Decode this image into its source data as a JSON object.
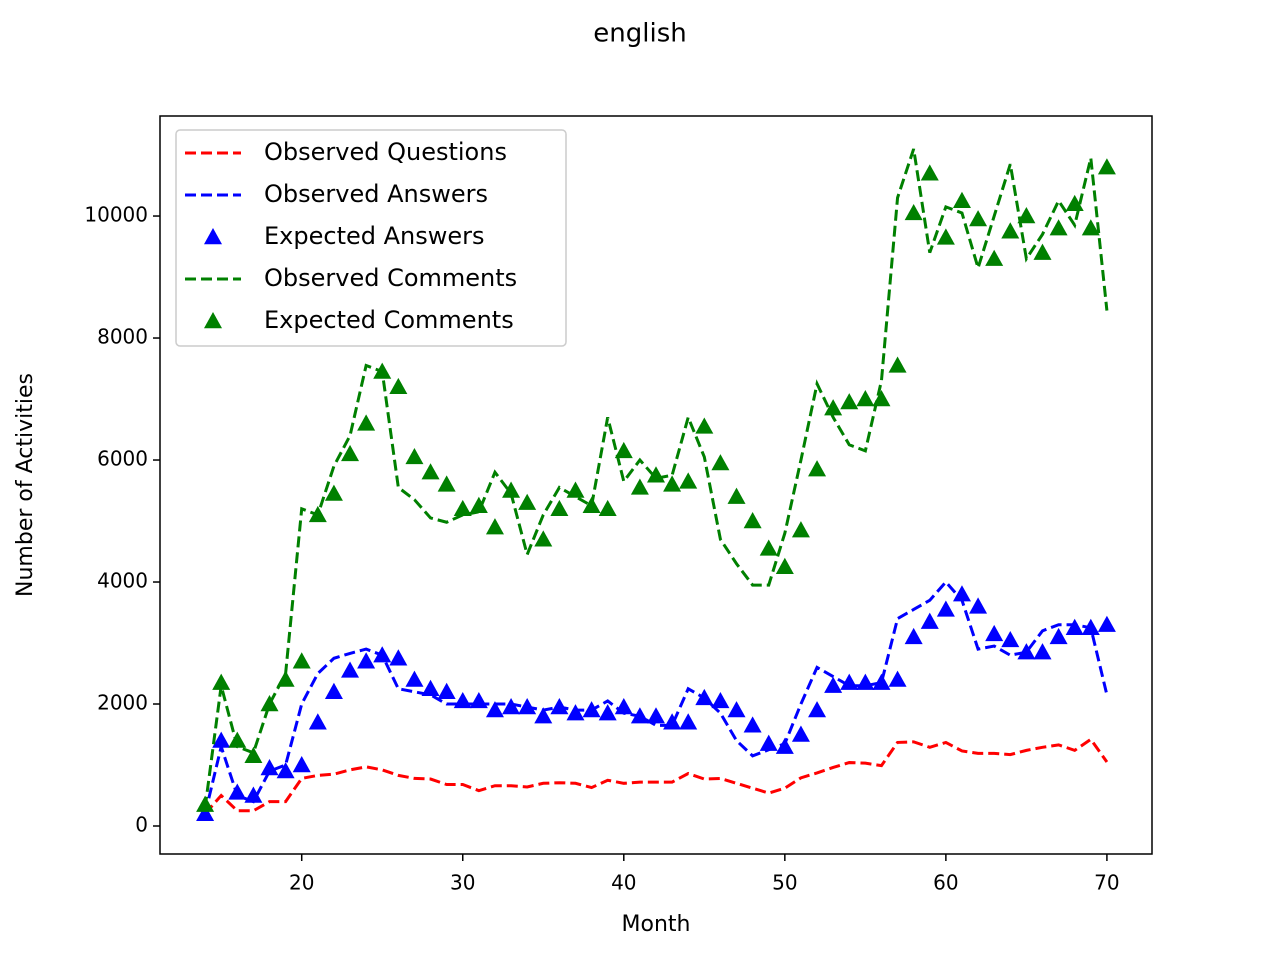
{
  "chart_data": {
    "type": "line",
    "title": "english",
    "x_label": "Month",
    "y_label": "Number of Activities",
    "x": [
      14,
      15,
      16,
      17,
      18,
      19,
      20,
      21,
      22,
      23,
      24,
      25,
      26,
      27,
      28,
      29,
      30,
      31,
      32,
      33,
      34,
      35,
      36,
      37,
      38,
      39,
      40,
      41,
      42,
      43,
      44,
      45,
      46,
      47,
      48,
      49,
      50,
      51,
      52,
      53,
      54,
      55,
      56,
      57,
      58,
      59,
      60,
      61,
      62,
      63,
      64,
      65,
      66,
      67,
      68,
      69,
      70
    ],
    "xlim": [
      11.2,
      72.8
    ],
    "xticks": [
      20,
      30,
      40,
      50,
      60,
      70
    ],
    "ylim": [
      -459,
      11640
    ],
    "yticks": [
      0,
      2000,
      4000,
      6000,
      8000,
      10000
    ],
    "legend_loc": "upper left",
    "series": [
      {
        "name": "Observed Questions",
        "color": "#ff0000",
        "style": "dashed",
        "values": [
          200,
          500,
          250,
          250,
          400,
          400,
          780,
          830,
          850,
          920,
          970,
          920,
          830,
          780,
          770,
          680,
          680,
          580,
          660,
          660,
          640,
          700,
          710,
          700,
          630,
          750,
          700,
          720,
          720,
          720,
          860,
          770,
          780,
          700,
          620,
          540,
          620,
          790,
          870,
          960,
          1040,
          1030,
          990,
          1370,
          1380,
          1290,
          1370,
          1230,
          1190,
          1190,
          1170,
          1240,
          1290,
          1330,
          1240,
          1420,
          1050
        ]
      },
      {
        "name": "Observed Answers",
        "color": "#0000ff",
        "style": "dashed",
        "values": [
          200,
          1300,
          500,
          400,
          900,
          1000,
          2000,
          2500,
          2750,
          2830,
          2900,
          2800,
          2250,
          2200,
          2150,
          2000,
          2000,
          2000,
          2000,
          2000,
          1950,
          1900,
          1950,
          1900,
          1900,
          2050,
          1850,
          1800,
          1650,
          1650,
          2250,
          2100,
          1850,
          1400,
          1150,
          1250,
          1350,
          2000,
          2600,
          2450,
          2300,
          2300,
          2350,
          3400,
          3550,
          3700,
          4000,
          3700,
          2900,
          2950,
          2800,
          2850,
          3200,
          3300,
          3300,
          3250,
          2150
        ]
      },
      {
        "name": "Expected Answers",
        "color": "#0000ff",
        "style": "triangles",
        "values": [
          200,
          1400,
          550,
          500,
          950,
          900,
          1000,
          1700,
          2200,
          2550,
          2700,
          2800,
          2750,
          2400,
          2250,
          2200,
          2050,
          2050,
          1900,
          1950,
          1950,
          1800,
          1950,
          1850,
          1900,
          1850,
          1950,
          1800,
          1800,
          1700,
          1700,
          2100,
          2050,
          1900,
          1650,
          1350,
          1300,
          1500,
          1900,
          2300,
          2350,
          2350,
          2350,
          2400,
          3100,
          3350,
          3550,
          3800,
          3600,
          3150,
          3050,
          2850,
          2850,
          3100,
          3250,
          3250,
          3300
        ]
      },
      {
        "name": "Observed Comments",
        "color": "#008000",
        "style": "dashed",
        "values": [
          300,
          2300,
          1300,
          1200,
          2000,
          2500,
          5200,
          5100,
          5900,
          6400,
          7550,
          7450,
          5550,
          5350,
          5050,
          4980,
          5100,
          5150,
          5800,
          5450,
          4450,
          5100,
          5550,
          5400,
          5250,
          6700,
          5650,
          6000,
          5700,
          5750,
          6700,
          6050,
          4700,
          4300,
          3950,
          3950,
          4800,
          6000,
          7250,
          6700,
          6250,
          6150,
          7300,
          10300,
          11100,
          9400,
          10150,
          10050,
          9150,
          10000,
          10850,
          9300,
          9700,
          10250,
          9850,
          10950,
          8450
        ]
      },
      {
        "name": "Expected Comments",
        "color": "#008000",
        "style": "triangles",
        "values": [
          350,
          2350,
          1400,
          1150,
          2000,
          2400,
          2700,
          5100,
          5450,
          6100,
          6600,
          7450,
          7200,
          6050,
          5800,
          5600,
          5200,
          5250,
          4900,
          5500,
          5300,
          4700,
          5200,
          5500,
          5250,
          5200,
          6150,
          5550,
          5750,
          5600,
          5650,
          6550,
          5950,
          5400,
          5000,
          4550,
          4250,
          4850,
          5850,
          6850,
          6950,
          7000,
          7000,
          7550,
          10050,
          10700,
          9650,
          10250,
          9950,
          9300,
          9750,
          10000,
          9400,
          9800,
          10200,
          9800,
          10800
        ]
      }
    ]
  }
}
